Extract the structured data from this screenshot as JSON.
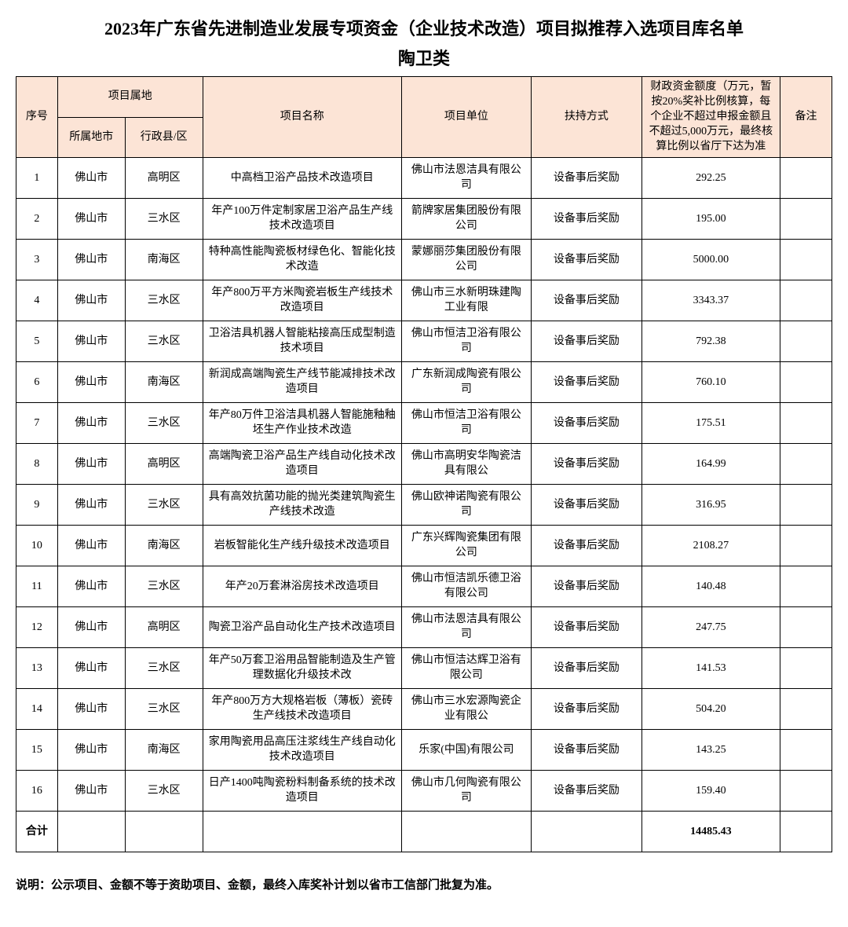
{
  "title": "2023年广东省先进制造业发展专项资金（企业技术改造）项目拟推荐入选项目库名单",
  "subtitle": "陶卫类",
  "header": {
    "seq": "序号",
    "location_group": "项目属地",
    "city": "所属地市",
    "district": "行政县/区",
    "project": "项目名称",
    "unit": "项目单位",
    "support": "扶持方式",
    "amount": "财政资金额度（万元，暂按20%奖补比例核算，每个企业不超过申报金额且不超过5,000万元，最终核算比例以省厅下达为准",
    "remark": "备注"
  },
  "rows": [
    {
      "seq": "1",
      "city": "佛山市",
      "district": "高明区",
      "project": "中高档卫浴产品技术改造项目",
      "unit": "佛山市法恩洁具有限公司",
      "support": "设备事后奖励",
      "amount": "292.25",
      "remark": ""
    },
    {
      "seq": "2",
      "city": "佛山市",
      "district": "三水区",
      "project": "年产100万件定制家居卫浴产品生产线技术改造项目",
      "unit": "箭牌家居集团股份有限公司",
      "support": "设备事后奖励",
      "amount": "195.00",
      "remark": ""
    },
    {
      "seq": "3",
      "city": "佛山市",
      "district": "南海区",
      "project": "特种高性能陶瓷板材绿色化、智能化技术改造",
      "unit": "蒙娜丽莎集团股份有限公司",
      "support": "设备事后奖励",
      "amount": "5000.00",
      "remark": ""
    },
    {
      "seq": "4",
      "city": "佛山市",
      "district": "三水区",
      "project": "年产800万平方米陶瓷岩板生产线技术改造项目",
      "unit": "佛山市三水新明珠建陶工业有限",
      "support": "设备事后奖励",
      "amount": "3343.37",
      "remark": ""
    },
    {
      "seq": "5",
      "city": "佛山市",
      "district": "三水区",
      "project": "卫浴洁具机器人智能粘接高压成型制造技术项目",
      "unit": "佛山市恒洁卫浴有限公司",
      "support": "设备事后奖励",
      "amount": "792.38",
      "remark": ""
    },
    {
      "seq": "6",
      "city": "佛山市",
      "district": "南海区",
      "project": "新润成高端陶瓷生产线节能减排技术改造项目",
      "unit": "广东新润成陶瓷有限公司",
      "support": "设备事后奖励",
      "amount": "760.10",
      "remark": ""
    },
    {
      "seq": "7",
      "city": "佛山市",
      "district": "三水区",
      "project": "年产80万件卫浴洁具机器人智能施釉釉坯生产作业技术改造",
      "unit": "佛山市恒洁卫浴有限公司",
      "support": "设备事后奖励",
      "amount": "175.51",
      "remark": ""
    },
    {
      "seq": "8",
      "city": "佛山市",
      "district": "高明区",
      "project": "高端陶瓷卫浴产品生产线自动化技术改造项目",
      "unit": "佛山市高明安华陶瓷洁具有限公",
      "support": "设备事后奖励",
      "amount": "164.99",
      "remark": ""
    },
    {
      "seq": "9",
      "city": "佛山市",
      "district": "三水区",
      "project": "具有高效抗菌功能的抛光类建筑陶瓷生产线技术改造",
      "unit": "佛山欧神诺陶瓷有限公司",
      "support": "设备事后奖励",
      "amount": "316.95",
      "remark": ""
    },
    {
      "seq": "10",
      "city": "佛山市",
      "district": "南海区",
      "project": "岩板智能化生产线升级技术改造项目",
      "unit": "广东兴辉陶瓷集团有限公司",
      "support": "设备事后奖励",
      "amount": "2108.27",
      "remark": ""
    },
    {
      "seq": "11",
      "city": "佛山市",
      "district": "三水区",
      "project": "年产20万套淋浴房技术改造项目",
      "unit": "佛山市恒洁凯乐德卫浴有限公司",
      "support": "设备事后奖励",
      "amount": "140.48",
      "remark": ""
    },
    {
      "seq": "12",
      "city": "佛山市",
      "district": "高明区",
      "project": "陶瓷卫浴产品自动化生产技术改造项目",
      "unit": "佛山市法恩洁具有限公司",
      "support": "设备事后奖励",
      "amount": "247.75",
      "remark": ""
    },
    {
      "seq": "13",
      "city": "佛山市",
      "district": "三水区",
      "project": "年产50万套卫浴用品智能制造及生产管理数据化升级技术改",
      "unit": "佛山市恒洁达辉卫浴有限公司",
      "support": "设备事后奖励",
      "amount": "141.53",
      "remark": ""
    },
    {
      "seq": "14",
      "city": "佛山市",
      "district": "三水区",
      "project": "年产800万方大规格岩板（薄板）瓷砖生产线技术改造项目",
      "unit": "佛山市三水宏源陶瓷企业有限公",
      "support": "设备事后奖励",
      "amount": "504.20",
      "remark": ""
    },
    {
      "seq": "15",
      "city": "佛山市",
      "district": "南海区",
      "project": "家用陶瓷用品高压注浆线生产线自动化技术改造项目",
      "unit": "乐家(中国)有限公司",
      "support": "设备事后奖励",
      "amount": "143.25",
      "remark": ""
    },
    {
      "seq": "16",
      "city": "佛山市",
      "district": "三水区",
      "project": "日产1400吨陶瓷粉料制备系统的技术改造项目",
      "unit": "佛山市几何陶瓷有限公司",
      "support": "设备事后奖励",
      "amount": "159.40",
      "remark": ""
    }
  ],
  "total": {
    "label": "合计",
    "amount": "14485.43"
  },
  "note": "说明：公示项目、金额不等于资助项目、金额，最终入库奖补计划以省市工信部门批复为准。",
  "styling": {
    "header_bg": "#fce4d6",
    "border_color": "#000000",
    "font_family": "SimSun",
    "title_fontsize": 22,
    "cell_fontsize": 14
  }
}
